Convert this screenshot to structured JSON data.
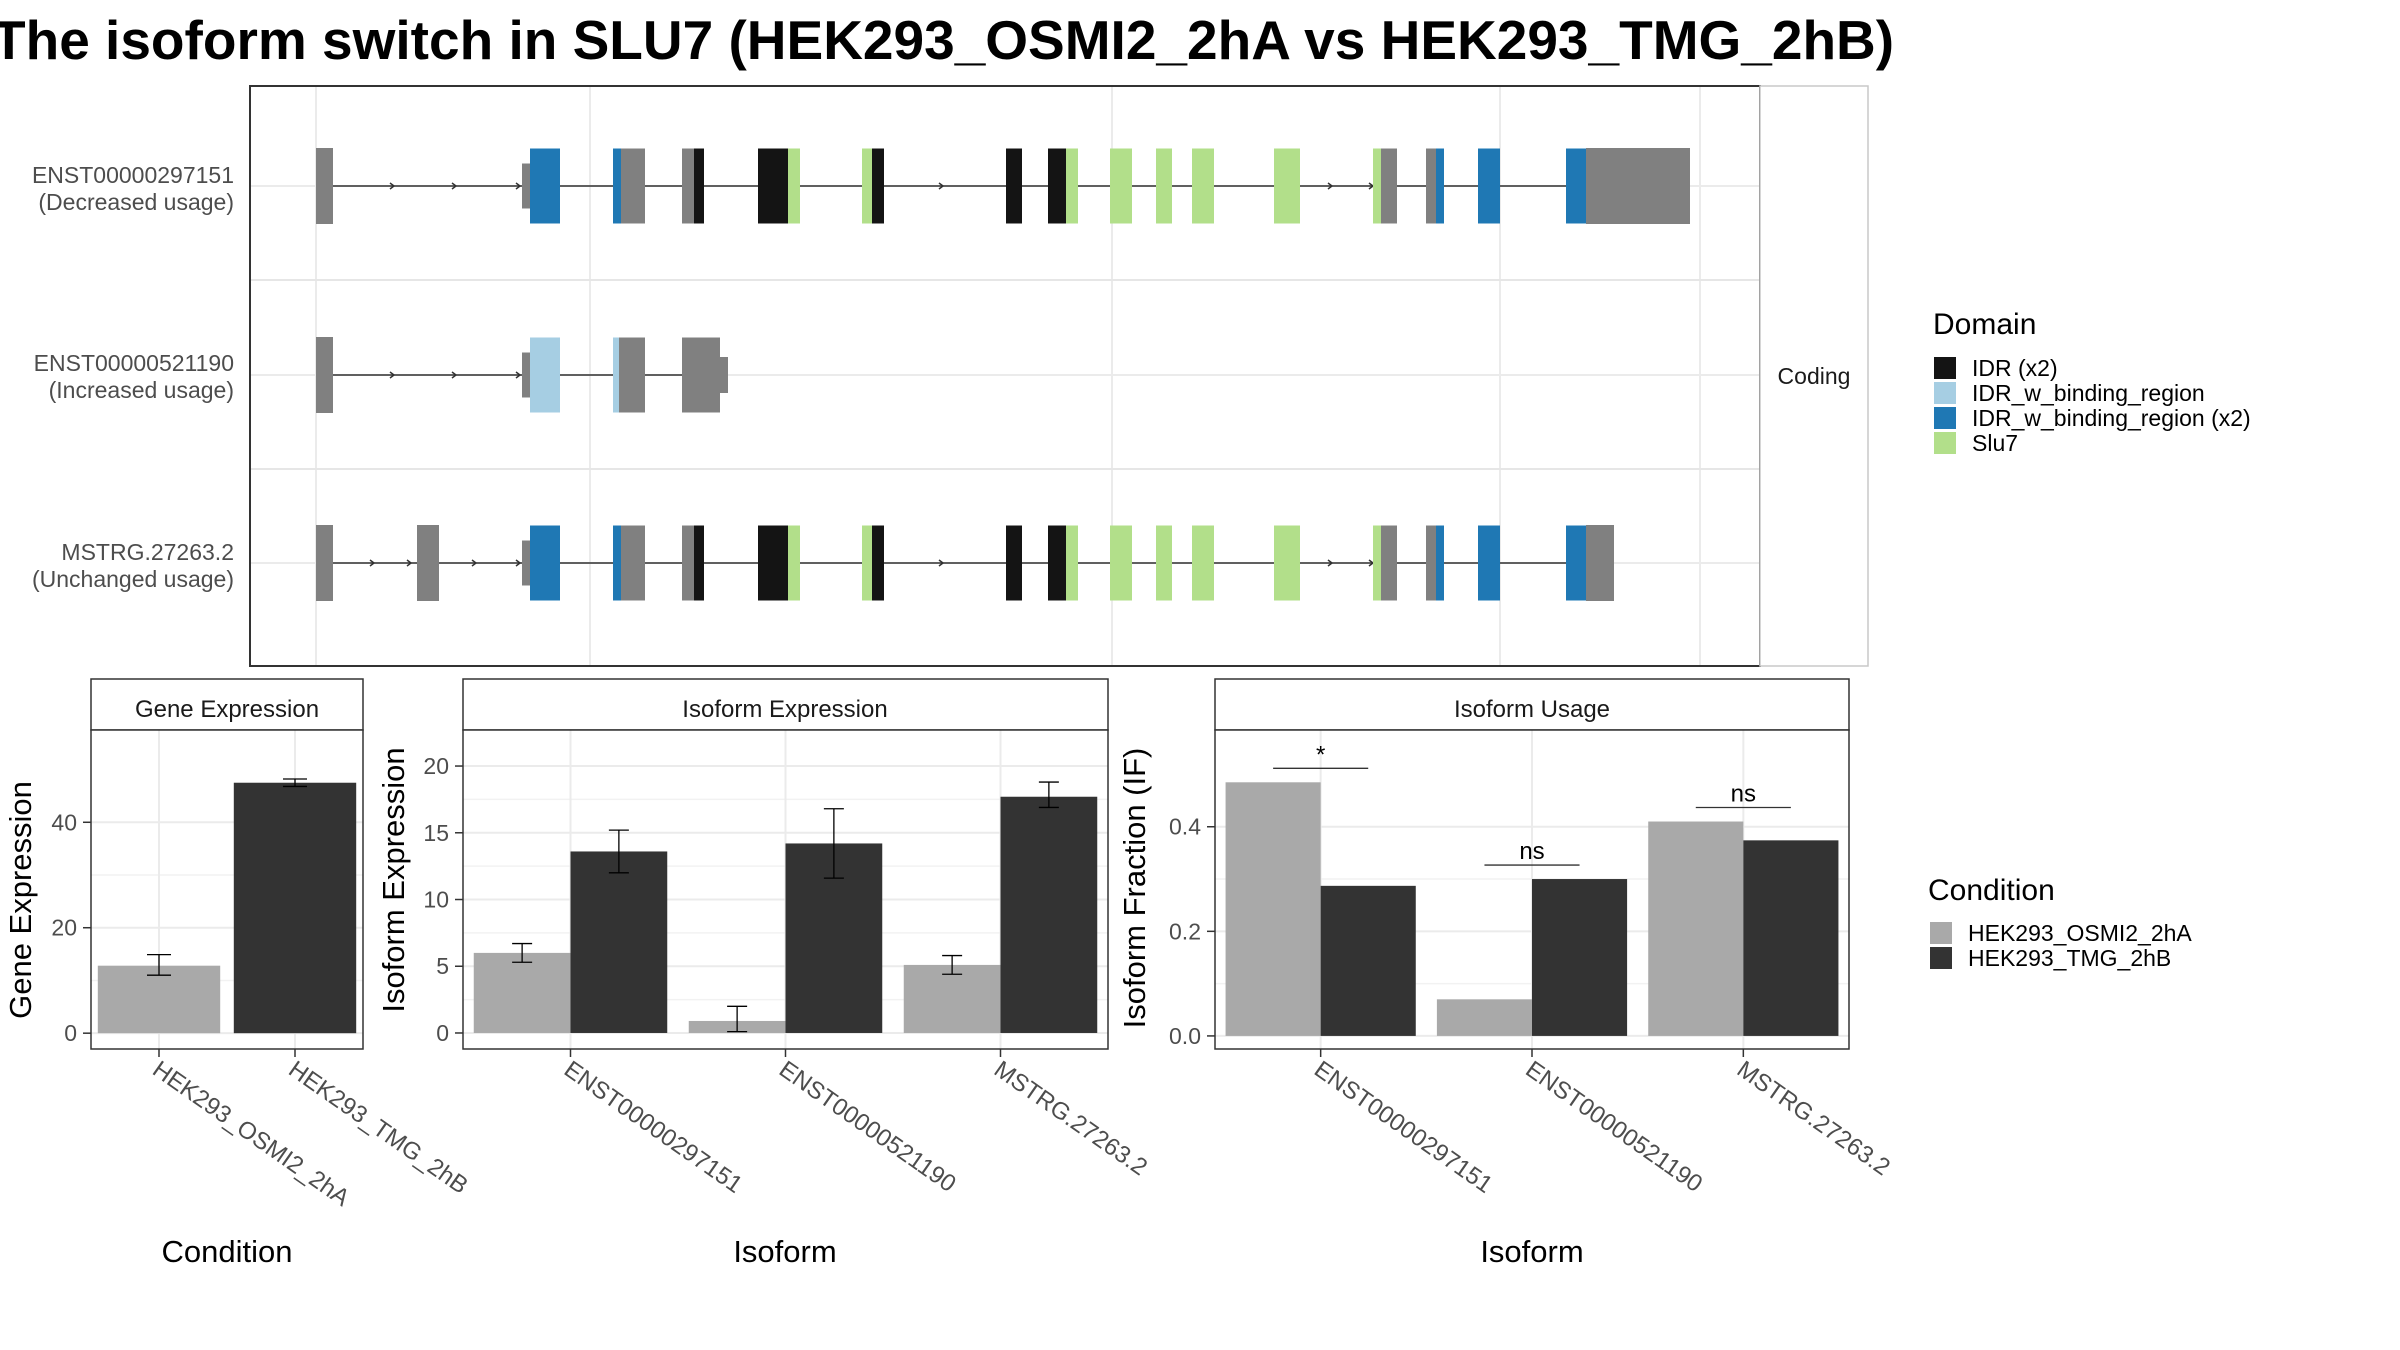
{
  "title": "The isoform switch in SLU7 (HEK293_OSMI2_2hA vs HEK293_TMG_2hB)",
  "colors": {
    "IDR": "#141414",
    "IDR_w_binding_region": "#a6cee3",
    "IDR_w_binding_region_x2": "#1f78b4",
    "Slu7": "#b2df8a",
    "utr": "#808080",
    "cond_A": "#a9a9a9",
    "cond_B": "#333333"
  },
  "structure_panel": {
    "strip_label": "Coding",
    "transcripts": [
      {
        "id": "ENST00000297151",
        "usage": "(Decreased usage)"
      },
      {
        "id": "ENST00000521190",
        "usage": "(Increased usage)"
      },
      {
        "id": "MSTRG.27263.2",
        "usage": "(Unchanged usage)"
      }
    ]
  },
  "legend_domain": {
    "title": "Domain",
    "items": [
      {
        "label": "IDR (x2)",
        "color": "#141414"
      },
      {
        "label": "IDR_w_binding_region",
        "color": "#a6cee3"
      },
      {
        "label": "IDR_w_binding_region (x2)",
        "color": "#1f78b4"
      },
      {
        "label": "Slu7",
        "color": "#b2df8a"
      }
    ]
  },
  "legend_condition": {
    "title": "Condition",
    "items": [
      {
        "label": "HEK293_OSMI2_2hA",
        "color": "#a9a9a9"
      },
      {
        "label": "HEK293_TMG_2hB",
        "color": "#333333"
      }
    ]
  },
  "chart_data": [
    {
      "type": "bar",
      "title": "Gene Expression",
      "xlabel": "Condition",
      "ylabel": "Gene Expression",
      "categories": [
        "HEK293_OSMI2_2hA",
        "HEK293_TMG_2hB"
      ],
      "values": [
        12.8,
        47.5
      ],
      "error_low": [
        11.0,
        46.8
      ],
      "error_high": [
        14.9,
        48.2
      ],
      "ylim": [
        -3,
        57.5
      ],
      "yticks": [
        0,
        20,
        40
      ]
    },
    {
      "type": "bar",
      "title": "Isoform Expression",
      "xlabel": "Isoform",
      "ylabel": "Isoform Expression",
      "categories": [
        "ENST00000297151",
        "ENST00000521190",
        "MSTRG.27263.2"
      ],
      "series": [
        {
          "name": "HEK293_OSMI2_2hA",
          "values": [
            6.0,
            0.9,
            5.1
          ],
          "error_low": [
            5.3,
            0.1,
            4.4
          ],
          "error_high": [
            6.7,
            2.0,
            5.8
          ]
        },
        {
          "name": "HEK293_TMG_2hB",
          "values": [
            13.6,
            14.2,
            17.7
          ],
          "error_low": [
            12.0,
            11.6,
            16.9
          ],
          "error_high": [
            15.2,
            16.8,
            18.8
          ]
        }
      ],
      "ylim": [
        -1.2,
        22.7
      ],
      "yticks": [
        0,
        5,
        10,
        15,
        20
      ]
    },
    {
      "type": "bar",
      "title": "Isoform Usage",
      "xlabel": "Isoform",
      "ylabel": "Isoform Fraction (IF)",
      "categories": [
        "ENST00000297151",
        "ENST00000521190",
        "MSTRG.27263.2"
      ],
      "series": [
        {
          "name": "HEK293_OSMI2_2hA",
          "values": [
            0.485,
            0.07,
            0.41
          ]
        },
        {
          "name": "HEK293_TMG_2hB",
          "values": [
            0.287,
            0.3,
            0.374
          ]
        }
      ],
      "significance": [
        "*",
        "ns",
        "ns"
      ],
      "ylim": [
        -0.025,
        0.585
      ],
      "yticks": [
        0.0,
        0.2,
        0.4
      ],
      "ytick_labels": [
        "0.0",
        "0.2",
        "0.4"
      ]
    }
  ]
}
